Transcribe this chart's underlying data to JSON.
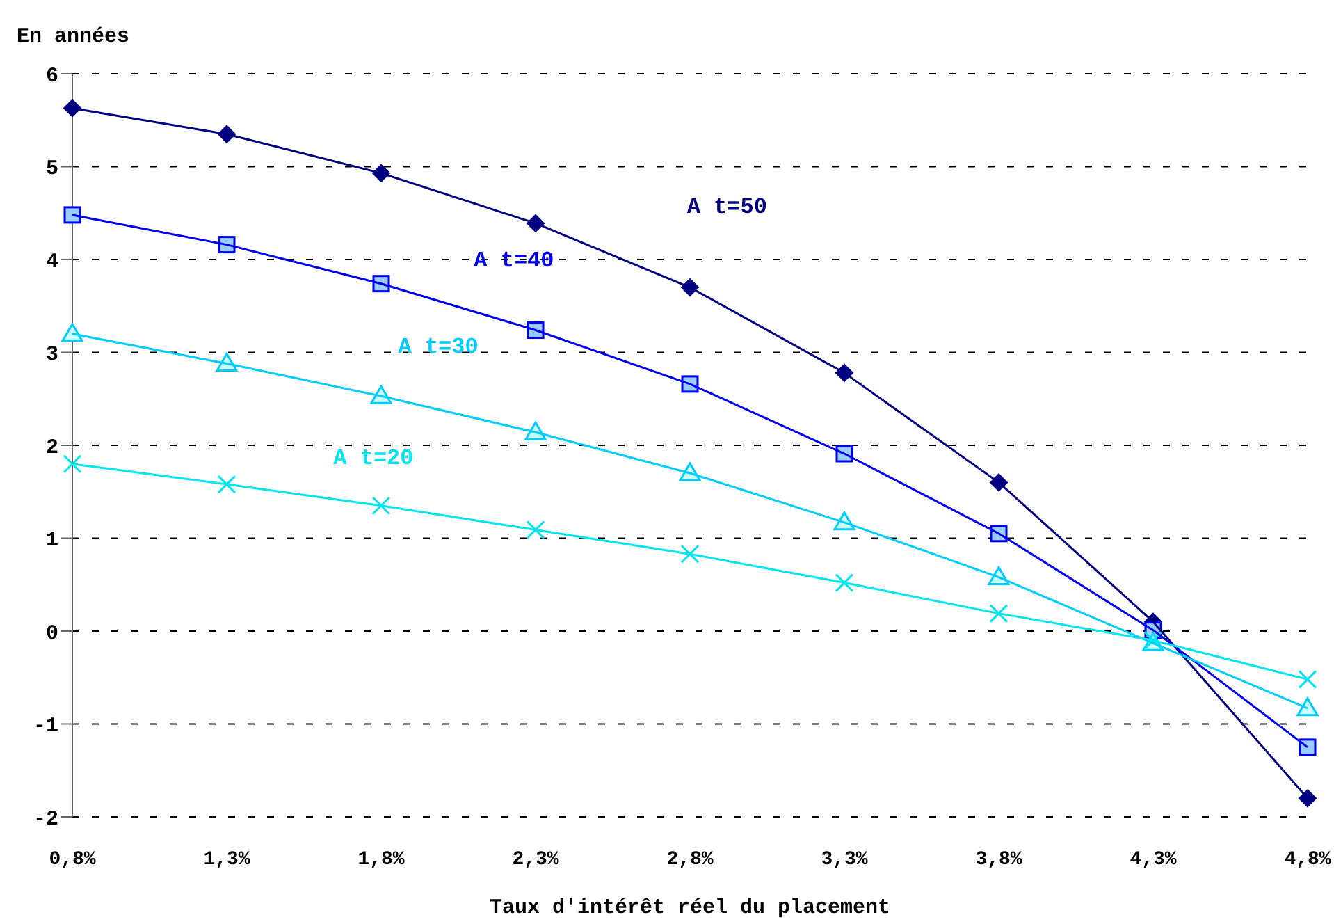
{
  "chart_data": {
    "type": "line",
    "ylabel": "En années",
    "xlabel": "Taux d'intérêt réel du placement",
    "categories": [
      "0,8%",
      "1,3%",
      "1,8%",
      "2,3%",
      "2,8%",
      "3,3%",
      "3,8%",
      "4,3%",
      "4,8%"
    ],
    "series": [
      {
        "name": "A t=50",
        "color": "#000080",
        "marker": "diamond",
        "values": [
          5.63,
          5.35,
          4.93,
          4.39,
          3.7,
          2.78,
          1.6,
          0.1,
          -1.8
        ]
      },
      {
        "name": "A t=40",
        "color": "#0000ee",
        "marker": "square",
        "values": [
          4.48,
          4.16,
          3.74,
          3.24,
          2.66,
          1.91,
          1.05,
          0.01,
          -1.25
        ]
      },
      {
        "name": "A t=30",
        "color": "#00ccff",
        "marker": "triangle",
        "values": [
          3.2,
          2.88,
          2.53,
          2.14,
          1.7,
          1.17,
          0.58,
          -0.13,
          -0.83
        ]
      },
      {
        "name": "A t=20",
        "color": "#00e5ee",
        "marker": "cross",
        "values": [
          1.8,
          1.58,
          1.35,
          1.09,
          0.83,
          0.52,
          0.19,
          -0.1,
          -0.52
        ]
      }
    ],
    "ylim": [
      -2,
      6
    ],
    "yticks": [
      -2,
      -1,
      0,
      1,
      2,
      3,
      4,
      5,
      6
    ],
    "grid": "y",
    "legend": false,
    "line_style": "solid"
  }
}
